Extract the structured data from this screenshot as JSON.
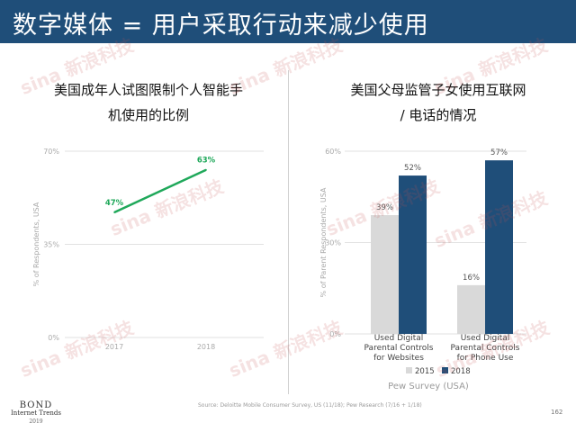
{
  "header": {
    "title": "数字媒体 = 用户采取行动来减少使用"
  },
  "left_panel": {
    "title_line1": "美国成年人试图限制个人智能手",
    "title_line2": "机使用的比例"
  },
  "right_panel": {
    "title_line1": "美国父母监管子女使用互联网",
    "title_line2": "/ 电话的情况"
  },
  "chart_data": [
    {
      "type": "line",
      "x": [
        "2017",
        "2018"
      ],
      "series": [
        {
          "values": [
            47,
            63
          ],
          "labels": [
            "47%",
            "63%"
          ]
        }
      ],
      "ylabel": "% of Respondents, USA",
      "yticks": [
        "0%",
        "35%",
        "70%"
      ],
      "ylim": [
        0,
        70
      ],
      "color": "#1fa85a",
      "grid": true
    },
    {
      "type": "bar",
      "categories": [
        [
          "Used Digital",
          "Parental Controls",
          "for Websites"
        ],
        [
          "Used Digital",
          "Parental Controls",
          "for Phone Use"
        ]
      ],
      "series": [
        {
          "name": "2015",
          "values": [
            39,
            16
          ],
          "labels": [
            "39%",
            "16%"
          ],
          "color": "#d9d9d9"
        },
        {
          "name": "2018",
          "values": [
            52,
            57
          ],
          "labels": [
            "52%",
            "57%"
          ],
          "color": "#1f4e79"
        }
      ],
      "ylabel": "% of Parent Respondents, USA",
      "yticks": [
        "0%",
        "30%",
        "60%"
      ],
      "ylim": [
        0,
        60
      ],
      "xlabel": "Pew Survey (USA)",
      "legend": "bottom",
      "grid": true
    }
  ],
  "footer": {
    "source": "Source: Deloitte Mobile Consumer Survey, US (11/18); Pew Research (7/16 + 1/18)",
    "page": "162",
    "bond_line1": "BOND",
    "bond_line2": "Internet Trends",
    "bond_line3": "2019"
  },
  "watermark": {
    "text": "sina 新浪科技",
    "color": "#c85050"
  }
}
